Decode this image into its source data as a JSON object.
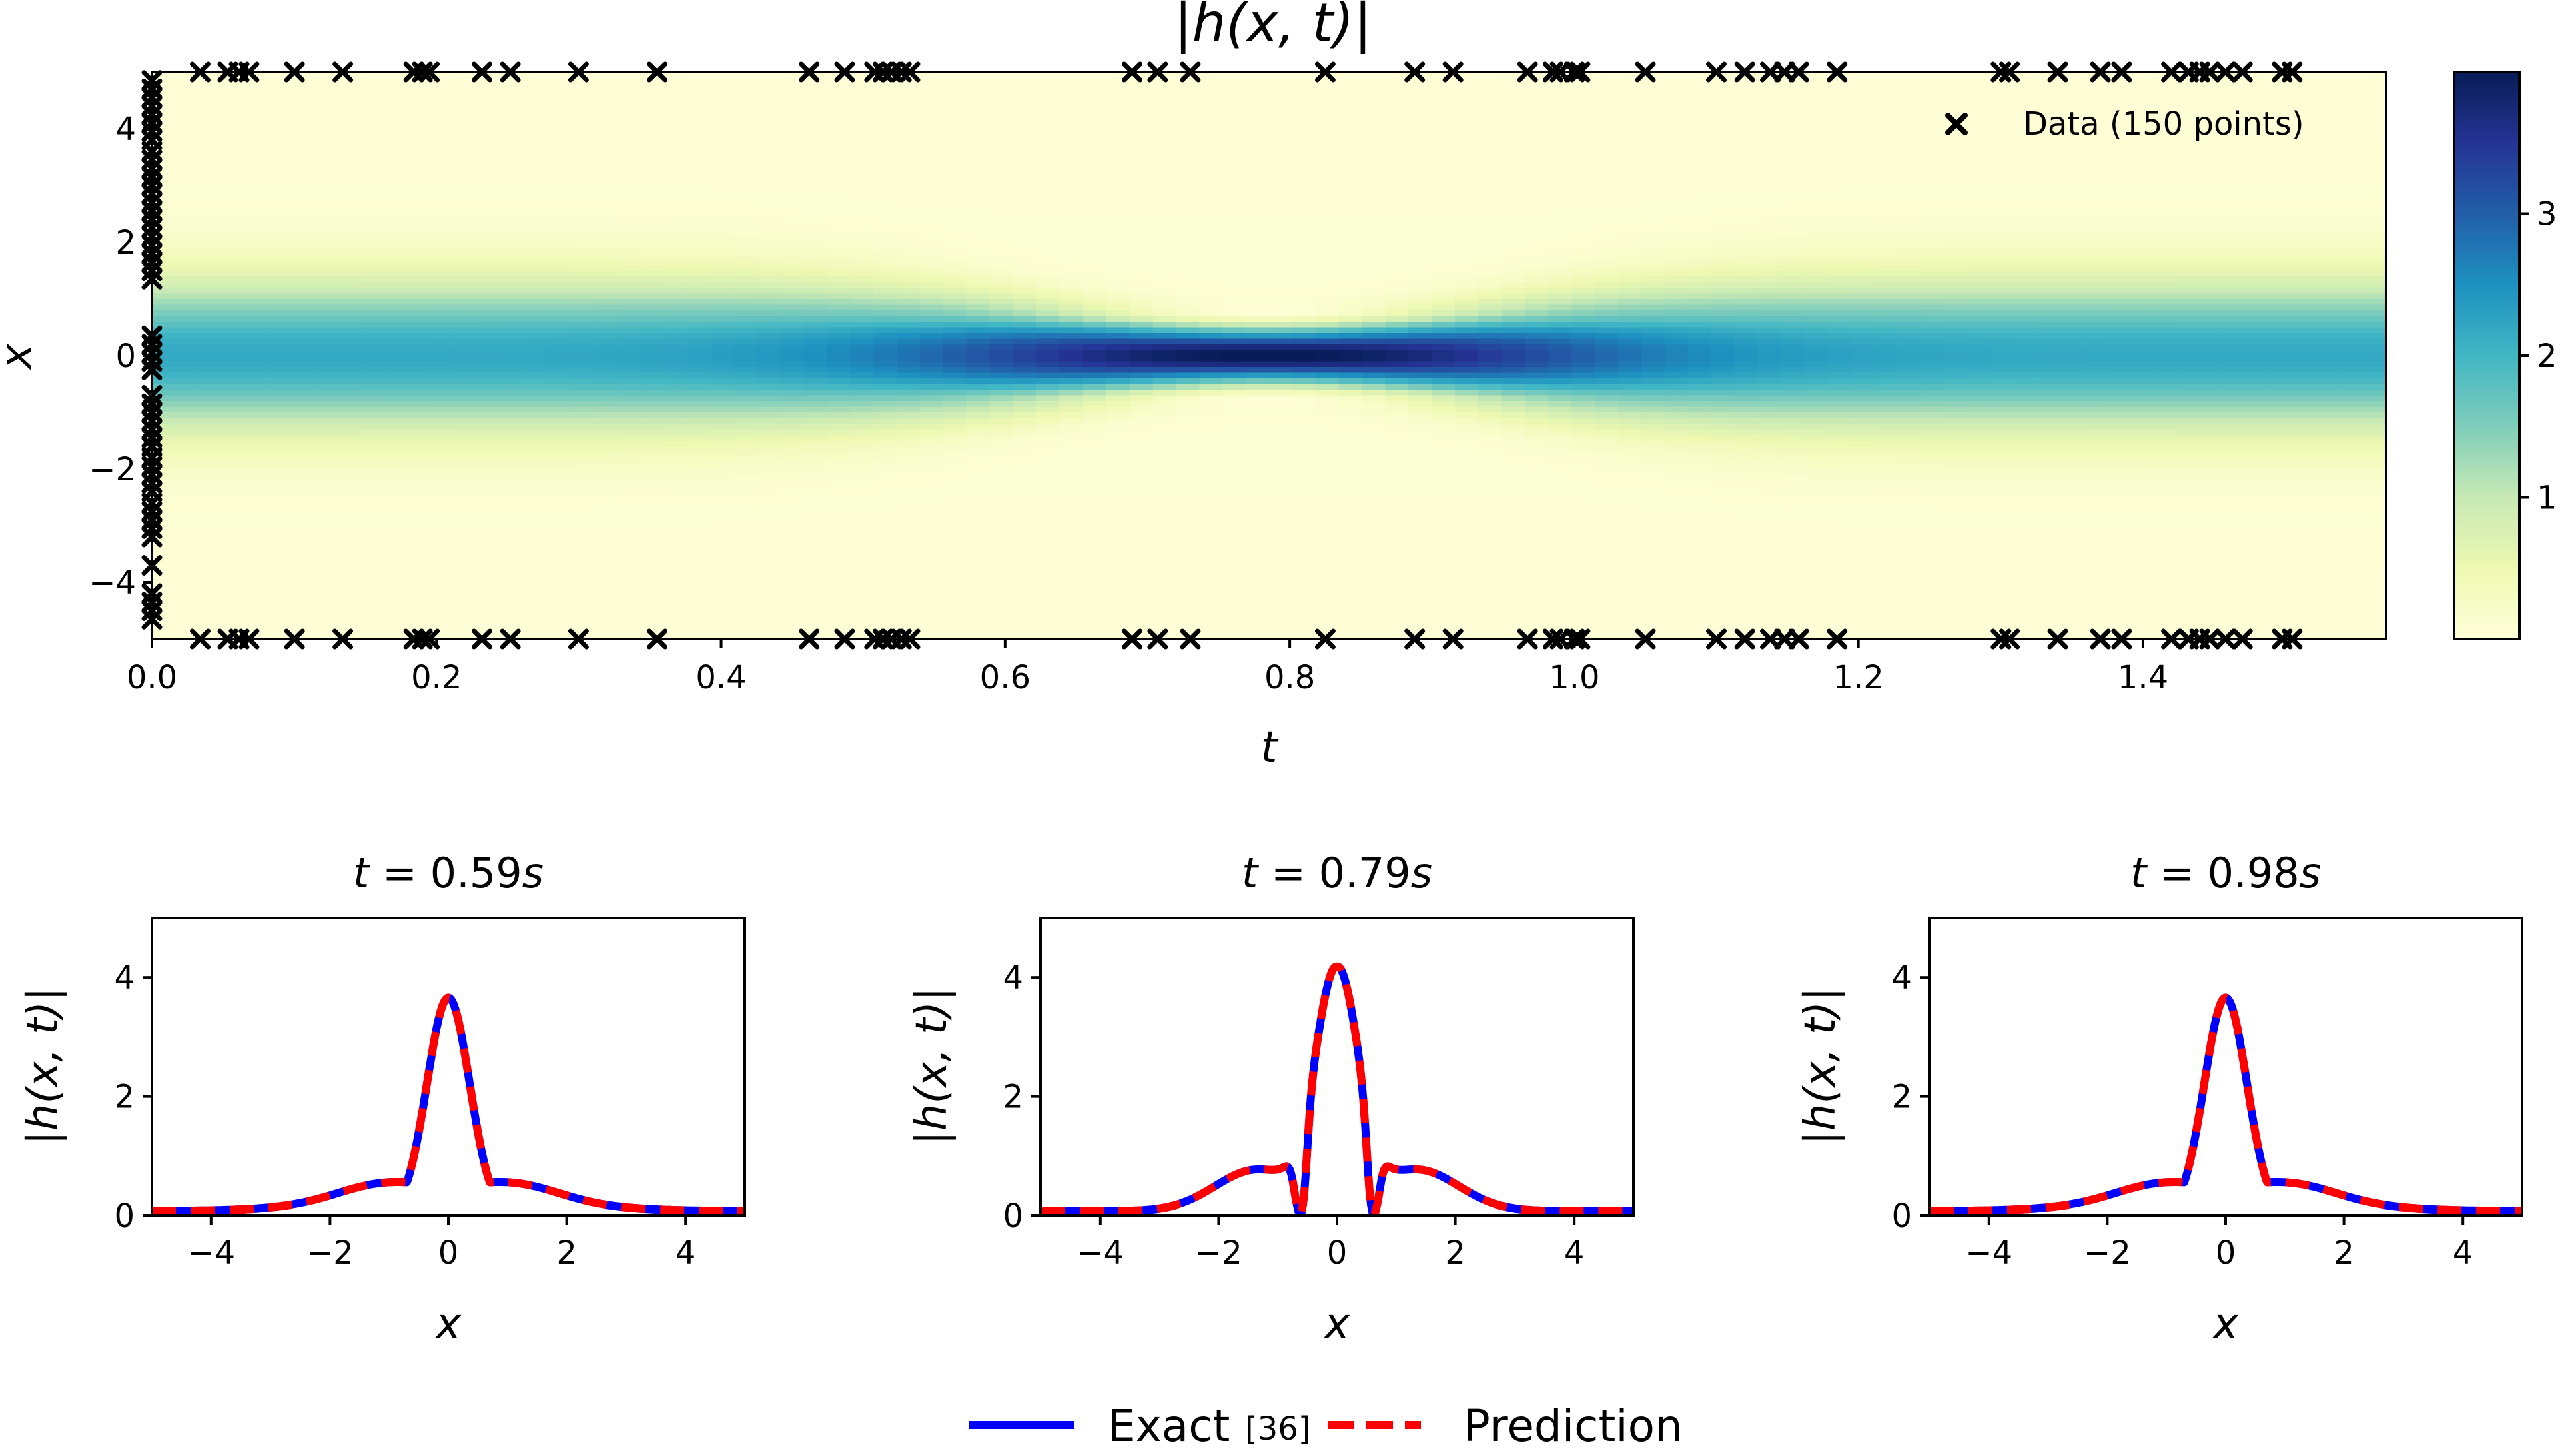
{
  "colors": {
    "exact": "#0000ff",
    "prediction": "#ff0000",
    "marker": "#000000",
    "colormap": [
      "#ffffd9",
      "#edf8b1",
      "#c7e9b4",
      "#7fcdbb",
      "#41b6c4",
      "#1d91c0",
      "#225ea8",
      "#253494",
      "#081d58"
    ]
  },
  "chart_data": [
    {
      "type": "heatmap",
      "title": "|h(x, t)|",
      "xlabel": "t",
      "ylabel": "x",
      "xlim": [
        0,
        1.5708
      ],
      "ylim": [
        -5,
        5
      ],
      "xticks": [
        0.0,
        0.2,
        0.4,
        0.6,
        0.8,
        1.0,
        1.2,
        1.4
      ],
      "xtick_labels": [
        "0.0",
        "0.2",
        "0.4",
        "0.6",
        "0.8",
        "1.0",
        "1.2",
        "1.4"
      ],
      "yticks": [
        -4,
        -2,
        0,
        2,
        4
      ],
      "ytick_labels": [
        "−4",
        "−2",
        "0",
        "2",
        "4"
      ],
      "colorbar": {
        "range": [
          0.0,
          4.0
        ],
        "ticks": [
          1,
          2,
          3
        ],
        "tick_labels": [
          "1",
          "2",
          "3"
        ]
      },
      "legend": {
        "label": "Data (150 points)",
        "position": "upper-right"
      },
      "data_points": {
        "initial_x": [
          4.85,
          4.7,
          4.55,
          4.4,
          4.25,
          4.1,
          3.95,
          3.8,
          3.6,
          3.45,
          3.3,
          3.15,
          3.0,
          2.85,
          2.7,
          2.55,
          2.4,
          2.25,
          2.1,
          1.95,
          1.8,
          1.65,
          1.5,
          1.35,
          0.35,
          0.2,
          0.05,
          -0.1,
          -0.25,
          -0.7,
          -0.85,
          -1.0,
          -1.15,
          -1.3,
          -1.45,
          -1.6,
          -1.8,
          -1.95,
          -2.1,
          -2.25,
          -2.4,
          -2.6,
          -2.75,
          -2.9,
          -3.05,
          -3.2,
          -3.7,
          -4.2,
          -4.35,
          -4.5,
          -4.65
        ],
        "boundary_t": [
          0.034,
          0.053,
          0.061,
          0.068,
          0.1,
          0.134,
          0.184,
          0.19,
          0.195,
          0.232,
          0.252,
          0.3,
          0.355,
          0.462,
          0.487,
          0.508,
          0.514,
          0.52,
          0.527,
          0.533,
          0.689,
          0.707,
          0.73,
          0.825,
          0.888,
          0.915,
          0.967,
          0.985,
          0.99,
          1.0,
          1.004,
          1.05,
          1.1,
          1.12,
          1.138,
          1.148,
          1.158,
          1.185,
          1.3,
          1.306,
          1.34,
          1.37,
          1.385,
          1.42,
          1.432,
          1.44,
          1.447,
          1.458,
          1.47,
          1.498,
          1.505
        ]
      }
    },
    {
      "type": "line",
      "title": "t = 0.59s",
      "t": 0.59,
      "xlabel": "x",
      "ylabel": "|h(x, t)|",
      "xlim": [
        -5,
        5
      ],
      "ylim": [
        0,
        5
      ],
      "xticks": [
        -4,
        -2,
        0,
        2,
        4
      ],
      "xtick_labels": [
        "−4",
        "−2",
        "0",
        "2",
        "4"
      ],
      "yticks": [
        0,
        2,
        4
      ],
      "ytick_labels": [
        "0",
        "2",
        "4"
      ],
      "series": [
        {
          "name": "Exact [36]"
        },
        {
          "name": "Prediction"
        }
      ]
    },
    {
      "type": "line",
      "title": "t = 0.79s",
      "t": 0.79,
      "xlabel": "x",
      "ylabel": "|h(x, t)|",
      "xlim": [
        -5,
        5
      ],
      "ylim": [
        0,
        5
      ],
      "xticks": [
        -4,
        -2,
        0,
        2,
        4
      ],
      "xtick_labels": [
        "−4",
        "−2",
        "0",
        "2",
        "4"
      ],
      "yticks": [
        0,
        2,
        4
      ],
      "ytick_labels": [
        "0",
        "2",
        "4"
      ],
      "series": [
        {
          "name": "Exact [36]"
        },
        {
          "name": "Prediction"
        }
      ]
    },
    {
      "type": "line",
      "title": "t = 0.98s",
      "t": 0.98,
      "xlabel": "x",
      "ylabel": "|h(x, t)|",
      "xlim": [
        -5,
        5
      ],
      "ylim": [
        0,
        5
      ],
      "xticks": [
        -4,
        -2,
        0,
        2,
        4
      ],
      "xtick_labels": [
        "−4",
        "−2",
        "0",
        "2",
        "4"
      ],
      "yticks": [
        0,
        2,
        4
      ],
      "ytick_labels": [
        "0",
        "2",
        "4"
      ],
      "series": [
        {
          "name": "Exact [36]"
        },
        {
          "name": "Prediction"
        }
      ]
    }
  ],
  "legend": {
    "exact_label": "Exact",
    "exact_ref": "[36]",
    "prediction_label": "Prediction"
  }
}
